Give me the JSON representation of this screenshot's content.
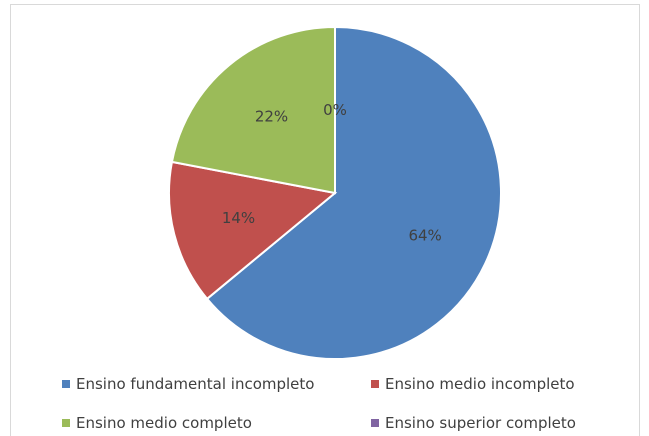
{
  "chart_data": {
    "type": "pie",
    "categories": [
      "Ensino fundamental incompleto",
      "Ensino medio incompleto",
      "Ensino medio completo",
      "Ensino superior completo"
    ],
    "values": [
      64,
      14,
      22,
      0
    ],
    "data_labels": [
      "64%",
      "14%",
      "22%",
      "0%"
    ],
    "colors": [
      "#4f81bd",
      "#c0504d",
      "#9bbb59",
      "#8064a2"
    ],
    "legend_position": "bottom",
    "title": ""
  }
}
